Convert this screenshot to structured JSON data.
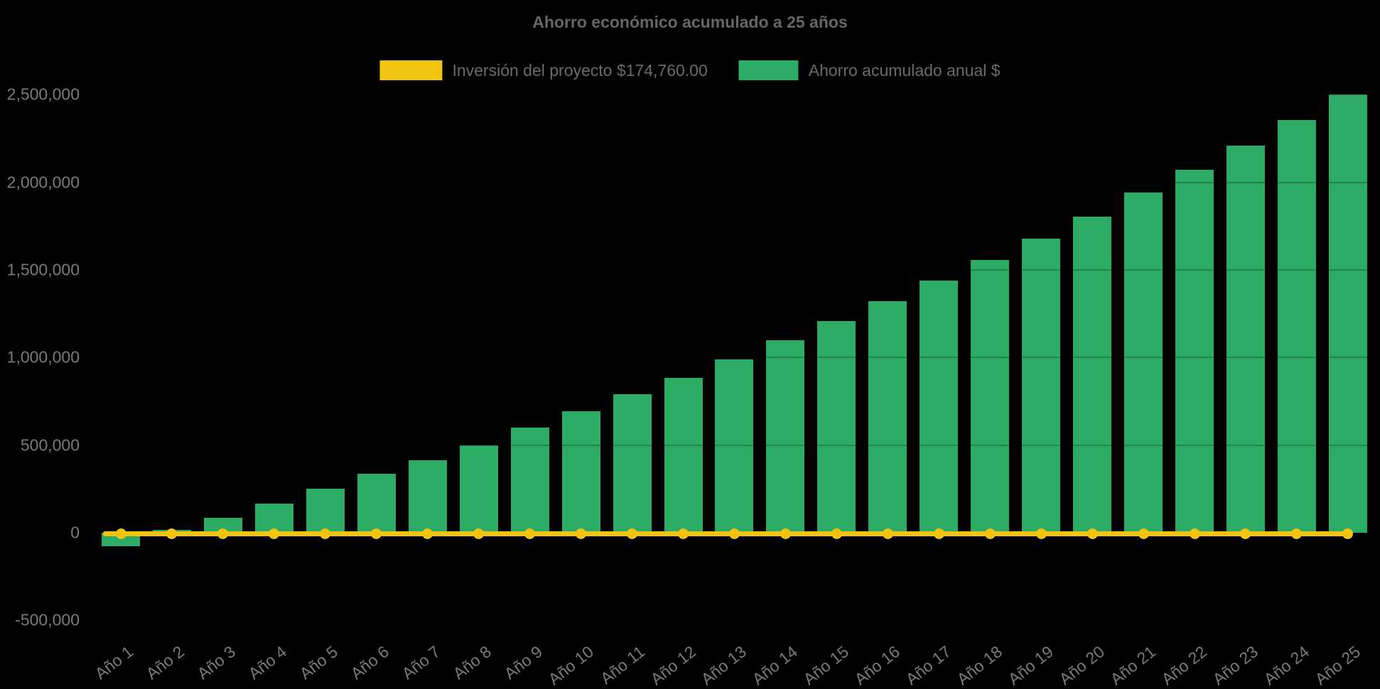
{
  "chart_data": {
    "type": "bar",
    "title": "Ahorro económico acumulado a 25 años",
    "background_color": "#000000",
    "legend_position": "top",
    "categories": [
      "Año 1",
      "Año 2",
      "Año 3",
      "Año 4",
      "Año 5",
      "Año 6",
      "Año 7",
      "Año 8",
      "Año 9",
      "Año 10",
      "Año 11",
      "Año 12",
      "Año 13",
      "Año 14",
      "Año 15",
      "Año 16",
      "Año 17",
      "Año 18",
      "Año 19",
      "Año 20",
      "Año 21",
      "Año 22",
      "Año 23",
      "Año 24",
      "Año 25"
    ],
    "series": [
      {
        "name": "Inversión del proyecto $174,760.00",
        "type": "line",
        "marker": "circle",
        "color": "#F0C411",
        "investment_amount_label": "$174,760.00",
        "values": [
          0,
          0,
          0,
          0,
          0,
          0,
          0,
          0,
          0,
          0,
          0,
          0,
          0,
          0,
          0,
          0,
          0,
          0,
          0,
          0,
          0,
          0,
          0,
          0,
          0
        ]
      },
      {
        "name": "Ahorro acumulado anual $",
        "type": "bar",
        "color": "#2BAB63",
        "values": [
          -75000,
          15000,
          85000,
          165000,
          250000,
          335000,
          415000,
          500000,
          600000,
          695000,
          790000,
          885000,
          990000,
          1100000,
          1210000,
          1320000,
          1440000,
          1555000,
          1680000,
          1805000,
          1940000,
          2070000,
          2210000,
          2355000,
          2500000
        ]
      }
    ],
    "y_axis": {
      "range": [
        -500000,
        2500000
      ],
      "gridlines": false,
      "ticks": [
        {
          "label": "2,500,000",
          "value": 2500000
        },
        {
          "label": "2,000,000",
          "value": 2000000
        },
        {
          "label": "1,500,000",
          "value": 1500000
        },
        {
          "label": "1,000,000",
          "value": 1000000
        },
        {
          "label": "500,000",
          "value": 500000
        },
        {
          "label": "0",
          "value": 0
        },
        {
          "label": "-500,000",
          "value": -500000
        }
      ]
    },
    "x_axis": {
      "label_rotation_deg": -38
    },
    "text_colors": {
      "title": "#666666",
      "legend": "#6b6b6b",
      "axis_labels": "#7a7a7a"
    }
  }
}
